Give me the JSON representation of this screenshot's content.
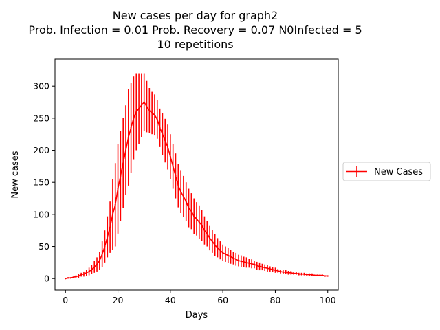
{
  "chart_data": {
    "type": "line",
    "title_lines": [
      "New cases per day for graph2",
      "Prob. Infection = 0.01   Prob. Recovery = 0.07  N0Infected = 5",
      "10 repetitions"
    ],
    "xlabel": "Days",
    "ylabel": "New cases",
    "xlim": [
      -4,
      104
    ],
    "ylim": [
      -18,
      342
    ],
    "xticks": [
      0,
      20,
      40,
      60,
      80,
      100
    ],
    "yticks": [
      0,
      50,
      100,
      150,
      200,
      250,
      300
    ],
    "grid": false,
    "legend": {
      "placement": "right-outside",
      "entries": [
        "New Cases"
      ]
    },
    "series": [
      {
        "name": "New Cases",
        "color": "#ff0000",
        "x": [
          0,
          1,
          2,
          3,
          4,
          5,
          6,
          7,
          8,
          9,
          10,
          11,
          12,
          13,
          14,
          15,
          16,
          17,
          18,
          19,
          20,
          21,
          22,
          23,
          24,
          25,
          26,
          27,
          28,
          29,
          30,
          31,
          32,
          33,
          34,
          35,
          36,
          37,
          38,
          39,
          40,
          41,
          42,
          43,
          44,
          45,
          46,
          47,
          48,
          49,
          50,
          51,
          52,
          53,
          54,
          55,
          56,
          57,
          58,
          59,
          60,
          61,
          62,
          63,
          64,
          65,
          66,
          67,
          68,
          69,
          70,
          71,
          72,
          73,
          74,
          75,
          76,
          77,
          78,
          79,
          80,
          81,
          82,
          83,
          84,
          85,
          86,
          87,
          88,
          89,
          90,
          91,
          92,
          93,
          94,
          95,
          96,
          97,
          98,
          99,
          100
        ],
        "y": [
          0,
          1,
          1,
          2,
          3,
          4,
          6,
          7,
          9,
          11,
          14,
          18,
          22,
          28,
          38,
          50,
          65,
          80,
          100,
          115,
          140,
          160,
          180,
          200,
          220,
          235,
          250,
          260,
          265,
          270,
          275,
          268,
          262,
          258,
          255,
          248,
          235,
          225,
          215,
          205,
          190,
          175,
          160,
          145,
          135,
          128,
          120,
          110,
          105,
          97,
          93,
          88,
          83,
          75,
          70,
          63,
          58,
          52,
          48,
          44,
          40,
          38,
          36,
          34,
          32,
          30,
          28,
          27,
          26,
          25,
          24,
          23,
          22,
          20,
          19,
          18,
          17,
          16,
          15,
          14,
          13,
          12,
          11,
          10,
          10,
          9,
          9,
          8,
          8,
          7,
          7,
          7,
          6,
          6,
          6,
          5,
          5,
          5,
          5,
          4,
          4
        ],
        "yerr": [
          1,
          1,
          1,
          1,
          2,
          3,
          3,
          4,
          5,
          6,
          7,
          9,
          11,
          14,
          20,
          25,
          32,
          40,
          55,
          65,
          70,
          70,
          70,
          70,
          75,
          70,
          65,
          60,
          55,
          50,
          45,
          40,
          35,
          33,
          32,
          30,
          30,
          33,
          34,
          35,
          35,
          35,
          35,
          34,
          33,
          32,
          30,
          30,
          28,
          28,
          26,
          26,
          24,
          22,
          20,
          19,
          18,
          17,
          15,
          14,
          13,
          12,
          12,
          11,
          10,
          10,
          9,
          9,
          8,
          8,
          7,
          7,
          6,
          6,
          6,
          5,
          5,
          5,
          4,
          4,
          4,
          3,
          3,
          3,
          3,
          3,
          3,
          2,
          2,
          2,
          2,
          2,
          2,
          2,
          2,
          1,
          1,
          1,
          1,
          1,
          1
        ]
      }
    ]
  }
}
